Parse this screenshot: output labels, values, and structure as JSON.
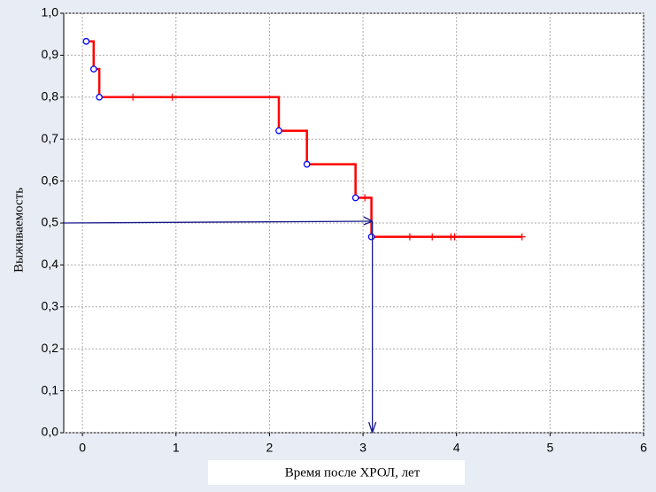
{
  "chart_data": {
    "type": "survival",
    "x_label": "Время после ХРОЛ, лет",
    "y_label": "Выживаемость",
    "xlim": [
      -0.2,
      6
    ],
    "ylim": [
      0,
      1
    ],
    "xticks": [
      0,
      1,
      2,
      3,
      4,
      5,
      6
    ],
    "yticks": [
      {
        "value": 0,
        "label": "0,0"
      },
      {
        "value": 0.1,
        "label": "0,1"
      },
      {
        "value": 0.2,
        "label": "0,2"
      },
      {
        "value": 0.3,
        "label": "0,3"
      },
      {
        "value": 0.4,
        "label": "0,4"
      },
      {
        "value": 0.5,
        "label": "0,5"
      },
      {
        "value": 0.6,
        "label": "0,6"
      },
      {
        "value": 0.7,
        "label": "0,7"
      },
      {
        "value": 0.8,
        "label": "0,8"
      },
      {
        "value": 0.9,
        "label": "0,9"
      },
      {
        "value": 1,
        "label": "1,0"
      }
    ],
    "grid": true,
    "color": "#ff0000",
    "event_color": "#0000ff",
    "events": {
      "x": [
        0.04,
        0.12,
        0.18,
        2.1,
        2.4,
        2.92,
        3.09
      ],
      "y": [
        0.933,
        0.867,
        0.8,
        0.72,
        0.64,
        0.56,
        0.467
      ]
    },
    "censored": {
      "x": [
        0.54,
        0.96,
        3.02,
        3.5,
        3.74,
        3.94,
        3.98,
        4.7
      ],
      "y": [
        0.8,
        0.8,
        0.56,
        0.467,
        0.467,
        0.467,
        0.467,
        0.467
      ]
    },
    "median": {
      "x": 3.1,
      "y": 0.5,
      "color": "#1a1a8c"
    }
  }
}
